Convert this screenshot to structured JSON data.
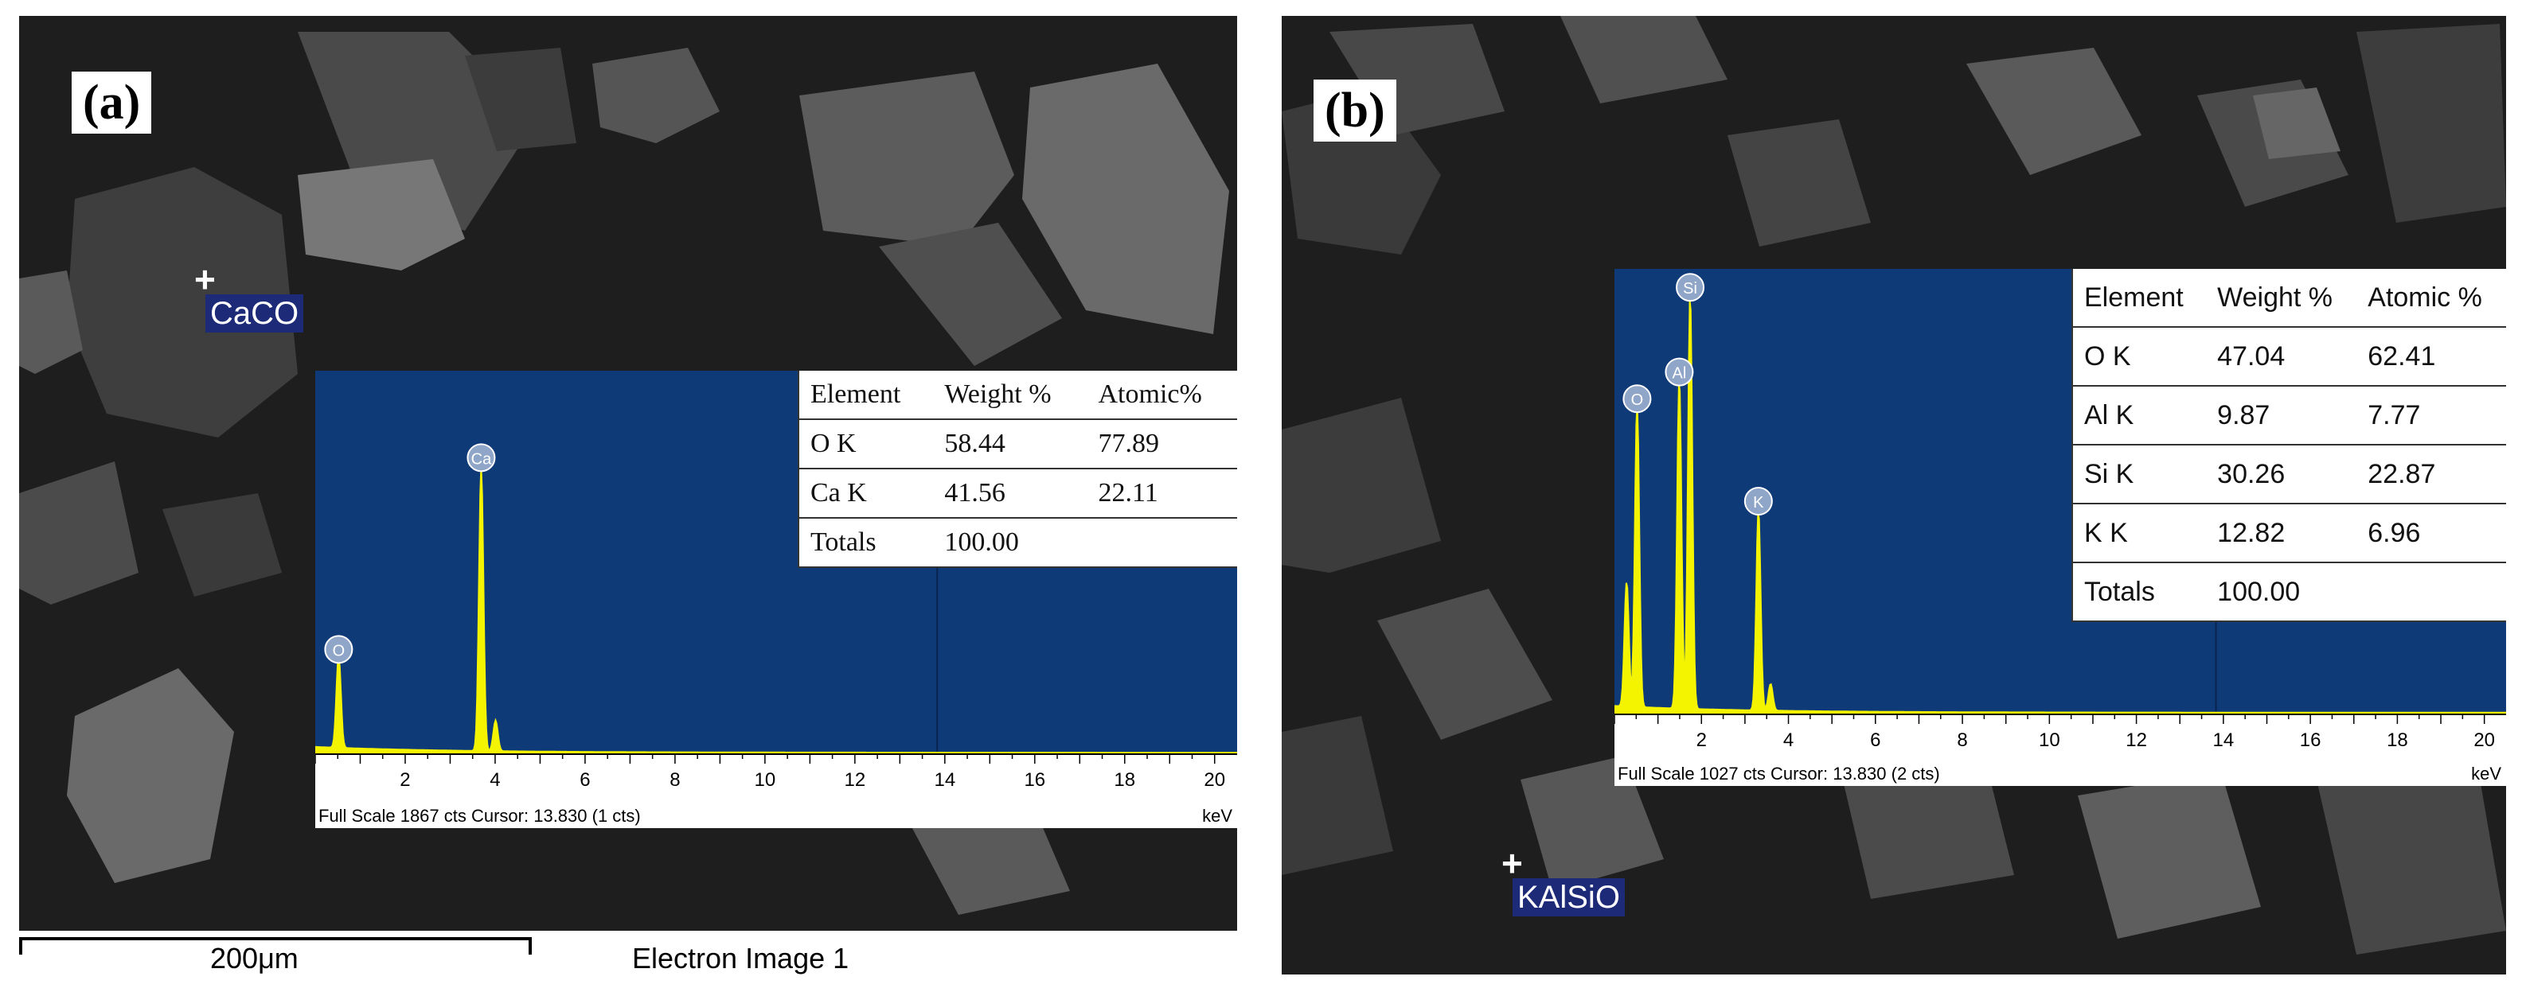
{
  "chart_data": [
    {
      "type": "line",
      "panel_label": "(a)",
      "spot_label": "CaCO",
      "xlabel": "keV",
      "xlim": [
        0,
        20.5
      ],
      "x_ticks": [
        "2",
        "4",
        "6",
        "8",
        "10",
        "12",
        "14",
        "16",
        "18",
        "20"
      ],
      "status_text": "Full Scale 1867 cts Cursor: 13.830  (1 cts)",
      "peaks": [
        {
          "label": "O",
          "x": 0.52,
          "y": 0.24
        },
        {
          "label": "Ca",
          "x": 3.69,
          "y": 0.74
        },
        {
          "label": "",
          "x": 4.01,
          "y": 0.08
        }
      ],
      "table": {
        "headers": [
          "Element",
          "Weight %",
          "Atomic%"
        ],
        "rows": [
          [
            "O K",
            "58.44",
            "77.89"
          ],
          [
            "Ca K",
            "41.56",
            "22.11"
          ],
          [
            "Totals",
            "100.00",
            ""
          ]
        ]
      }
    },
    {
      "type": "line",
      "panel_label": "(b)",
      "spot_label": "KAlSiO",
      "xlabel": "keV",
      "xlim": [
        0,
        20.5
      ],
      "x_ticks": [
        "2",
        "4",
        "6",
        "8",
        "10",
        "12",
        "14",
        "16",
        "18",
        "20"
      ],
      "status_text": "Full Scale 1027 cts Cursor: 13.830  (2 cts)",
      "peaks": [
        {
          "label": "O",
          "x": 0.52,
          "y": 0.68
        },
        {
          "label": "Al",
          "x": 1.49,
          "y": 0.74
        },
        {
          "label": "Si",
          "x": 1.74,
          "y": 0.93
        },
        {
          "label": "K",
          "x": 3.31,
          "y": 0.45
        },
        {
          "label": "",
          "x": 0.28,
          "y": 0.28
        },
        {
          "label": "",
          "x": 3.59,
          "y": 0.06
        }
      ],
      "table": {
        "headers": [
          "Element",
          "Weight %",
          "Atomic %"
        ],
        "rows": [
          [
            "O K",
            "47.04",
            "62.41"
          ],
          [
            "Al K",
            "9.87",
            "7.77"
          ],
          [
            "Si K",
            "30.26",
            "22.87"
          ],
          [
            "K K",
            "12.82",
            "6.96"
          ],
          [
            "Totals",
            "100.00",
            ""
          ]
        ]
      }
    }
  ],
  "scale_bar_label": "200μm",
  "image_caption": "Electron Image 1",
  "colors": {
    "spectrum_bg": "#0f3a78",
    "spectrum_line": "#f4f400",
    "peak_label_bg": "#8fa6c8",
    "spot_tag_bg": "#1c2a78"
  }
}
